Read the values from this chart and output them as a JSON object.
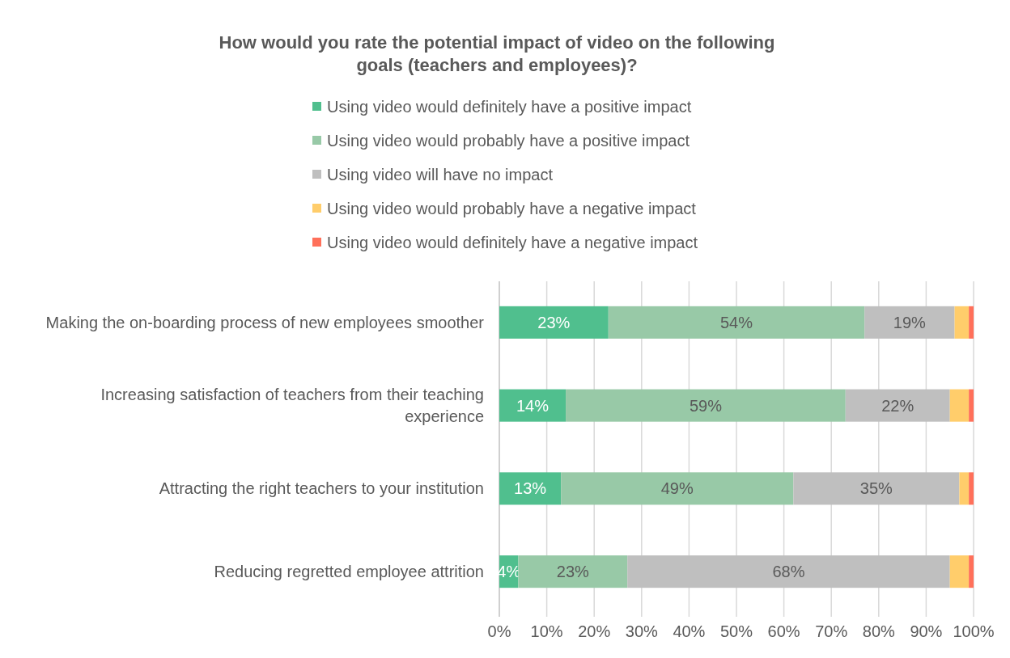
{
  "chart_data": {
    "type": "bar",
    "orientation": "horizontal",
    "stacked": true,
    "title": "How would you rate the potential impact of video on the following goals (teachers and employees)?",
    "categories": [
      "Making the on-boarding process of new employees smoother",
      "Increasing satisfaction of teachers from their teaching experience",
      "Attracting the right teachers to your institution",
      "Reducing regretted employee attrition"
    ],
    "series": [
      {
        "name": "Using video would definitely have a positive impact",
        "color": "#50bf8e",
        "values": [
          23,
          14,
          13,
          4
        ],
        "value_labels": [
          "23%",
          "14%",
          "13%",
          "4%"
        ]
      },
      {
        "name": "Using video would probably have a positive impact",
        "color": "#98c9a7",
        "values": [
          54,
          59,
          49,
          23
        ],
        "value_labels": [
          "54%",
          "59%",
          "49%",
          "23%"
        ]
      },
      {
        "name": "Using video will have no impact",
        "color": "#bfbfbf",
        "values": [
          19,
          22,
          35,
          68
        ],
        "value_labels": [
          "19%",
          "22%",
          "35%",
          "68%"
        ]
      },
      {
        "name": "Using video would probably have a negative impact",
        "color": "#ffcd6b",
        "values": [
          3,
          4,
          2,
          4
        ]
      },
      {
        "name": "Using video would definitely have a negative impact",
        "color": "#ff705a",
        "values": [
          1,
          1,
          1,
          1
        ]
      }
    ],
    "xlim": [
      0,
      100
    ],
    "xticks": [
      {
        "value": 0,
        "label": "0%"
      },
      {
        "value": 10,
        "label": "10%"
      },
      {
        "value": 20,
        "label": "20%"
      },
      {
        "value": 30,
        "label": "30%"
      },
      {
        "value": 40,
        "label": "40%"
      },
      {
        "value": 50,
        "label": "50%"
      },
      {
        "value": 60,
        "label": "60%"
      },
      {
        "value": 70,
        "label": "70%"
      },
      {
        "value": 80,
        "label": "80%"
      },
      {
        "value": 90,
        "label": "90%"
      },
      {
        "value": 100,
        "label": "100%"
      }
    ],
    "grid": "x",
    "legend": "top"
  }
}
